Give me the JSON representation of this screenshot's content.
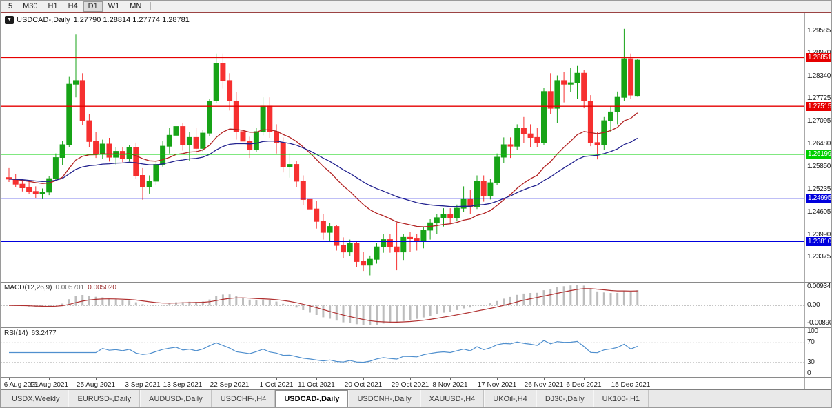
{
  "toolbar": {
    "buttons": [
      "5",
      "M30",
      "H1",
      "H4",
      "D1",
      "W1",
      "MN"
    ],
    "active": "D1"
  },
  "chart": {
    "symbol_label": "USDCAD-,Daily",
    "ohlc_text": "1.27790 1.28814 1.27774 1.28781"
  },
  "chart_data": {
    "type": "candlestick",
    "symbol": "USDCAD-",
    "timeframe": "Daily",
    "current_ohlc": {
      "open": 1.2779,
      "high": 1.28814,
      "low": 1.27774,
      "close": 1.28781
    },
    "colors": {
      "bull": "#17a317",
      "bear": "#f63030",
      "ma_fast": "#b22222",
      "ma_slow": "#22228f",
      "hline_red": "#e60000",
      "hline_green": "#00d000",
      "hline_blue": "#0000dd",
      "macd_hist": "#bdbdbd",
      "macd_signal": "#b03030",
      "rsi_line": "#4f8fce",
      "level_dotted": "#c0c0c0"
    },
    "y_axis": {
      "price_top": 1.3007,
      "price_bottom": 1.227,
      "labels": [
        "1.29585",
        "1.28970",
        "1.28340",
        "1.27725",
        "1.27095",
        "1.26480",
        "1.25850",
        "1.25235",
        "1.24605",
        "1.23990",
        "1.23375"
      ]
    },
    "hlines": [
      {
        "price": 1.28851,
        "badge": "1.28851",
        "color": "#e60000"
      },
      {
        "price": 1.27515,
        "badge": "1.27515",
        "color": "#e60000"
      },
      {
        "price": 1.26199,
        "badge": "1.26199",
        "color": "#00d000"
      },
      {
        "price": 1.24995,
        "badge": "1.24995",
        "color": "#0000dd"
      },
      {
        "price": 1.2381,
        "badge": "1.23810",
        "color": "#0000dd"
      }
    ],
    "moving_averages": [
      {
        "type": "ema",
        "period": 20,
        "color": "#b22222"
      },
      {
        "type": "ema",
        "period": 40,
        "color": "#22228f"
      }
    ],
    "x_labels": [
      {
        "i": 0,
        "label": "6 Aug 2021"
      },
      {
        "i": 6,
        "label": "16 Aug 2021"
      },
      {
        "i": 13,
        "label": "25 Aug 2021"
      },
      {
        "i": 20,
        "label": "3 Sep 2021"
      },
      {
        "i": 26,
        "label": "13 Sep 2021"
      },
      {
        "i": 33,
        "label": "22 Sep 2021"
      },
      {
        "i": 40,
        "label": "1 Oct 2021"
      },
      {
        "i": 46,
        "label": "11 Oct 2021"
      },
      {
        "i": 53,
        "label": "20 Oct 2021"
      },
      {
        "i": 60,
        "label": "29 Oct 2021"
      },
      {
        "i": 66,
        "label": "8 Nov 2021"
      },
      {
        "i": 73,
        "label": "17 Nov 2021"
      },
      {
        "i": 80,
        "label": "26 Nov 2021"
      },
      {
        "i": 86,
        "label": "6 Dec 2021"
      },
      {
        "i": 93,
        "label": "15 Dec 2021"
      }
    ],
    "candles": [
      [
        1.2556,
        1.2582,
        1.2544,
        1.2552
      ],
      [
        1.2552,
        1.2566,
        1.253,
        1.2538
      ],
      [
        1.2538,
        1.2552,
        1.2518,
        1.2528
      ],
      [
        1.2528,
        1.2546,
        1.251,
        1.2518
      ],
      [
        1.2518,
        1.2532,
        1.25,
        1.2511
      ],
      [
        1.2511,
        1.2526,
        1.2497,
        1.2516
      ],
      [
        1.2516,
        1.2561,
        1.2508,
        1.2553
      ],
      [
        1.2553,
        1.2622,
        1.2546,
        1.2611
      ],
      [
        1.2611,
        1.2656,
        1.259,
        1.2646
      ],
      [
        1.2646,
        1.2832,
        1.264,
        1.2812
      ],
      [
        1.2812,
        1.2948,
        1.2776,
        1.2822
      ],
      [
        1.2822,
        1.2842,
        1.27,
        1.2712
      ],
      [
        1.2712,
        1.273,
        1.264,
        1.2655
      ],
      [
        1.2655,
        1.2682,
        1.261,
        1.2622
      ],
      [
        1.2622,
        1.266,
        1.2608,
        1.2648
      ],
      [
        1.2648,
        1.2665,
        1.26,
        1.2612
      ],
      [
        1.2612,
        1.264,
        1.2592,
        1.2628
      ],
      [
        1.2628,
        1.264,
        1.2598,
        1.2608
      ],
      [
        1.2608,
        1.2646,
        1.26,
        1.2638
      ],
      [
        1.2638,
        1.2652,
        1.2552,
        1.2562
      ],
      [
        1.2562,
        1.2582,
        1.2495,
        1.253
      ],
      [
        1.253,
        1.2562,
        1.2512,
        1.2546
      ],
      [
        1.2546,
        1.2602,
        1.2536,
        1.2592
      ],
      [
        1.2592,
        1.2656,
        1.2586,
        1.2642
      ],
      [
        1.2642,
        1.2692,
        1.2622,
        1.2672
      ],
      [
        1.2672,
        1.2712,
        1.2642,
        1.2696
      ],
      [
        1.2696,
        1.2706,
        1.263,
        1.2646
      ],
      [
        1.2646,
        1.2682,
        1.2602,
        1.2666
      ],
      [
        1.2666,
        1.2692,
        1.262,
        1.2636
      ],
      [
        1.2636,
        1.2686,
        1.2626,
        1.2678
      ],
      [
        1.2678,
        1.2772,
        1.267,
        1.2766
      ],
      [
        1.2766,
        1.2896,
        1.276,
        1.287
      ],
      [
        1.287,
        1.2896,
        1.28,
        1.2822
      ],
      [
        1.2822,
        1.2842,
        1.274,
        1.2766
      ],
      [
        1.2766,
        1.279,
        1.266,
        1.2682
      ],
      [
        1.2682,
        1.2702,
        1.263,
        1.2656
      ],
      [
        1.2656,
        1.2668,
        1.261,
        1.2632
      ],
      [
        1.2632,
        1.2692,
        1.2626,
        1.2682
      ],
      [
        1.2682,
        1.2776,
        1.2672,
        1.2752
      ],
      [
        1.2752,
        1.2776,
        1.2665,
        1.2682
      ],
      [
        1.2682,
        1.2702,
        1.2622,
        1.2652
      ],
      [
        1.2652,
        1.2666,
        1.257,
        1.2586
      ],
      [
        1.2586,
        1.2622,
        1.2556,
        1.2592
      ],
      [
        1.2592,
        1.2602,
        1.253,
        1.2546
      ],
      [
        1.2546,
        1.2562,
        1.248,
        1.2496
      ],
      [
        1.2496,
        1.2512,
        1.2446,
        1.247
      ],
      [
        1.247,
        1.2492,
        1.2416,
        1.2436
      ],
      [
        1.2436,
        1.2456,
        1.2386,
        1.2406
      ],
      [
        1.2406,
        1.2432,
        1.238,
        1.2422
      ],
      [
        1.2422,
        1.2426,
        1.2356,
        1.237
      ],
      [
        1.237,
        1.2392,
        1.2336,
        1.2352
      ],
      [
        1.2352,
        1.2386,
        1.234,
        1.2376
      ],
      [
        1.2376,
        1.2382,
        1.231,
        1.2326
      ],
      [
        1.2326,
        1.2352,
        1.23,
        1.2316
      ],
      [
        1.2316,
        1.2342,
        1.2288,
        1.2332
      ],
      [
        1.2332,
        1.2376,
        1.232,
        1.2366
      ],
      [
        1.2366,
        1.2402,
        1.235,
        1.2386
      ],
      [
        1.2386,
        1.2402,
        1.235,
        1.2366
      ],
      [
        1.2366,
        1.2432,
        1.2302,
        1.2352
      ],
      [
        1.2352,
        1.2402,
        1.233,
        1.2392
      ],
      [
        1.2392,
        1.2406,
        1.2352,
        1.2388
      ],
      [
        1.2388,
        1.2402,
        1.2356,
        1.2382
      ],
      [
        1.2382,
        1.2422,
        1.2362,
        1.2412
      ],
      [
        1.2412,
        1.2442,
        1.2386,
        1.2432
      ],
      [
        1.2432,
        1.2456,
        1.2402,
        1.2446
      ],
      [
        1.2446,
        1.2472,
        1.2422,
        1.2456
      ],
      [
        1.2456,
        1.2472,
        1.2432,
        1.2446
      ],
      [
        1.2446,
        1.2482,
        1.2436,
        1.2472
      ],
      [
        1.2472,
        1.2532,
        1.2462,
        1.2496
      ],
      [
        1.2496,
        1.2522,
        1.2456,
        1.2476
      ],
      [
        1.2476,
        1.2562,
        1.247,
        1.2546
      ],
      [
        1.2546,
        1.2562,
        1.249,
        1.2506
      ],
      [
        1.2506,
        1.2552,
        1.2496,
        1.2542
      ],
      [
        1.2542,
        1.2622,
        1.2536,
        1.2612
      ],
      [
        1.2612,
        1.2666,
        1.2596,
        1.2646
      ],
      [
        1.2646,
        1.2666,
        1.261,
        1.2642
      ],
      [
        1.2642,
        1.2702,
        1.2632,
        1.2692
      ],
      [
        1.2692,
        1.2722,
        1.265,
        1.2676
      ],
      [
        1.2676,
        1.2702,
        1.264,
        1.2666
      ],
      [
        1.2666,
        1.2692,
        1.264,
        1.2652
      ],
      [
        1.2652,
        1.2802,
        1.2646,
        1.2792
      ],
      [
        1.2792,
        1.2842,
        1.273,
        1.2746
      ],
      [
        1.2746,
        1.2836,
        1.2706,
        1.2822
      ],
      [
        1.2822,
        1.2846,
        1.2762,
        1.2812
      ],
      [
        1.2812,
        1.2856,
        1.279,
        1.2816
      ],
      [
        1.2816,
        1.2862,
        1.2772,
        1.2842
      ],
      [
        1.2842,
        1.2852,
        1.2746,
        1.2766
      ],
      [
        1.2766,
        1.2782,
        1.2642,
        1.2652
      ],
      [
        1.2652,
        1.2682,
        1.2606,
        1.2646
      ],
      [
        1.2646,
        1.2722,
        1.2632,
        1.2712
      ],
      [
        1.2712,
        1.2752,
        1.2682,
        1.2736
      ],
      [
        1.2736,
        1.2792,
        1.2702,
        1.2776
      ],
      [
        1.2776,
        1.2964,
        1.2766,
        1.2882
      ],
      [
        1.2882,
        1.2896,
        1.2772,
        1.2782
      ],
      [
        1.2779,
        1.28814,
        1.27774,
        1.28781
      ]
    ],
    "macd": {
      "label": "MACD(12,26,9)",
      "value_main": "0.005701",
      "value_signal": "0.005020",
      "fast": 12,
      "slow": 26,
      "signal": 9,
      "axis_labels": [
        "0.009345",
        "0.00",
        "-0.00890"
      ],
      "range": [
        -0.0089,
        0.009345
      ]
    },
    "rsi": {
      "label": "RSI(14)",
      "value": "63.2477",
      "period": 14,
      "levels": [
        70,
        30
      ],
      "axis_labels": [
        "100",
        "70",
        "30",
        "0"
      ],
      "range": [
        0,
        100
      ]
    }
  },
  "tabs": {
    "items": [
      "USDX,Weekly",
      "EURUSD-,Daily",
      "AUDUSD-,Daily",
      "USDCHF-,H4",
      "USDCAD-,Daily",
      "USDCNH-,Daily",
      "XAUUSD-,H4",
      "UKOil-,H4",
      "DJ30-,Daily",
      "UK100-,H1"
    ],
    "active_index": 4
  }
}
